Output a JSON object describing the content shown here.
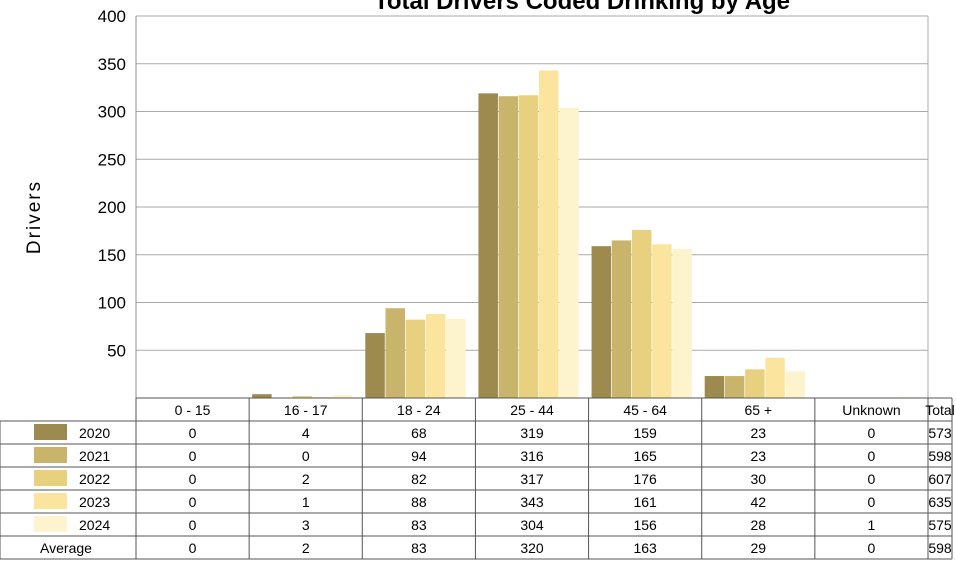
{
  "chart_data": {
    "type": "bar",
    "title": "Total Drivers Coded Drinking by Age",
    "ylabel": "Drivers",
    "xlabel": "",
    "ylim": [
      0,
      400
    ],
    "yticks": [
      50,
      100,
      150,
      200,
      250,
      300,
      350,
      400
    ],
    "grid": true,
    "categories": [
      "0 - 15",
      "16 - 17",
      "18 - 24",
      "25 - 44",
      "45 - 64",
      "65 +",
      "Unknown"
    ],
    "total_label": "Total",
    "series": [
      {
        "name": "2020",
        "color": "#9c8a4f",
        "values": [
          0,
          4,
          68,
          319,
          159,
          23,
          0
        ],
        "total": 573
      },
      {
        "name": "2021",
        "color": "#c8b46a",
        "values": [
          0,
          0,
          94,
          316,
          165,
          23,
          0
        ],
        "total": 598
      },
      {
        "name": "2022",
        "color": "#e8d17e",
        "values": [
          0,
          2,
          82,
          317,
          176,
          30,
          0
        ],
        "total": 607
      },
      {
        "name": "2023",
        "color": "#fbe59e",
        "values": [
          0,
          1,
          88,
          343,
          161,
          42,
          0
        ],
        "total": 635
      },
      {
        "name": "2024",
        "color": "#fdf3cd",
        "values": [
          0,
          3,
          83,
          304,
          156,
          28,
          1
        ],
        "total": 575
      }
    ],
    "summary_row": {
      "name": "Average",
      "values": [
        0,
        2,
        83,
        320,
        163,
        29,
        0
      ],
      "total": 598
    }
  }
}
